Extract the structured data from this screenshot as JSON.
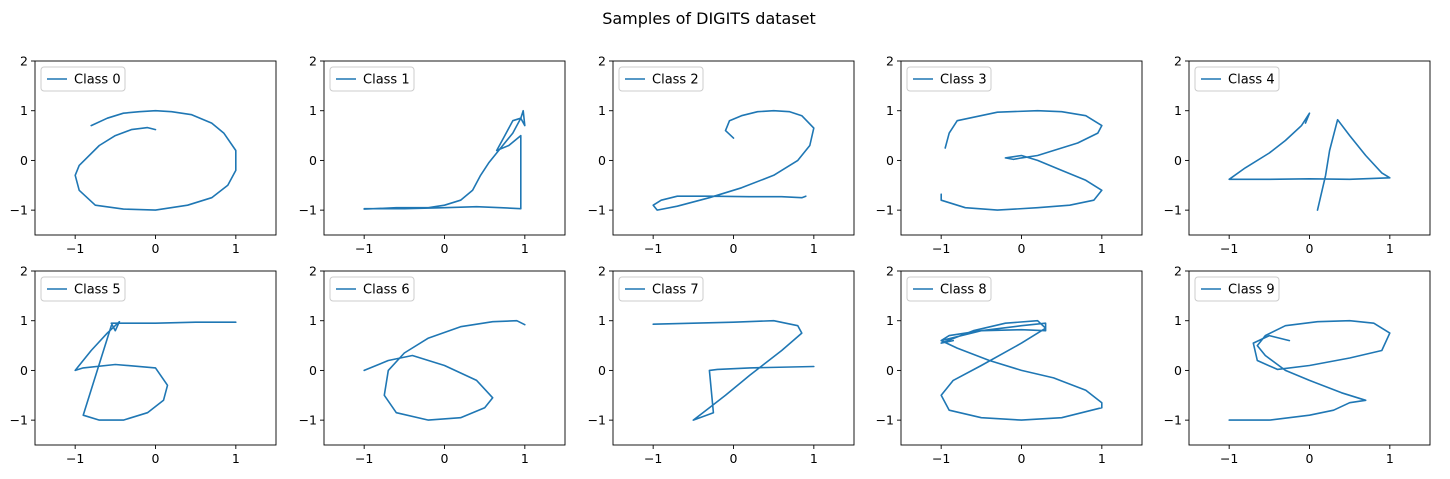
{
  "figure": {
    "title": "Samples of DIGITS dataset"
  },
  "style": {
    "line_color": "#1f77b4",
    "axes_color": "#000000",
    "legend_border": "#cccccc"
  },
  "chart_data": [
    {
      "type": "line",
      "legend": "Class 0",
      "xlim": [
        -1.5,
        1.5
      ],
      "ylim": [
        -1.5,
        2
      ],
      "xticks": [
        -1,
        0,
        1
      ],
      "yticks": [
        -1,
        0,
        1,
        2
      ],
      "grid": false,
      "legend_position": "top-left",
      "x": [
        -0.8,
        -0.6,
        -0.4,
        -0.2,
        0.0,
        0.2,
        0.45,
        0.7,
        0.85,
        1.0,
        1.0,
        0.9,
        0.7,
        0.4,
        0.0,
        -0.4,
        -0.75,
        -0.95,
        -1.0,
        -0.95,
        -0.7,
        -0.5,
        -0.3,
        -0.1,
        0.0
      ],
      "y": [
        0.7,
        0.85,
        0.95,
        0.98,
        1.0,
        0.98,
        0.92,
        0.75,
        0.55,
        0.2,
        -0.2,
        -0.5,
        -0.75,
        -0.9,
        -1.0,
        -0.98,
        -0.9,
        -0.6,
        -0.3,
        -0.1,
        0.3,
        0.5,
        0.62,
        0.66,
        0.62
      ]
    },
    {
      "type": "line",
      "legend": "Class 1",
      "xlim": [
        -1.5,
        1.5
      ],
      "ylim": [
        -1.5,
        2
      ],
      "xticks": [
        -1,
        0,
        1
      ],
      "yticks": [
        -1,
        0,
        1,
        2
      ],
      "grid": false,
      "legend_position": "top-left",
      "x": [
        -1.0,
        -0.6,
        -0.2,
        0.0,
        0.2,
        0.35,
        0.45,
        0.55,
        0.7,
        0.85,
        0.95,
        0.98,
        1.0,
        0.95,
        0.85,
        0.75,
        0.65,
        0.8,
        0.95,
        0.95,
        0.7,
        0.4,
        0.0,
        -0.5,
        -1.0
      ],
      "y": [
        -0.98,
        -0.95,
        -0.95,
        -0.9,
        -0.8,
        -0.6,
        -0.3,
        -0.05,
        0.25,
        0.55,
        0.85,
        1.0,
        0.7,
        0.85,
        0.8,
        0.5,
        0.2,
        0.3,
        0.5,
        -0.97,
        -0.95,
        -0.93,
        -0.95,
        -0.97,
        -0.97
      ]
    },
    {
      "type": "line",
      "legend": "Class 2",
      "xlim": [
        -1.5,
        1.5
      ],
      "ylim": [
        -1.5,
        2
      ],
      "xticks": [
        -1,
        0,
        1
      ],
      "yticks": [
        -1,
        0,
        1,
        2
      ],
      "grid": false,
      "legend_position": "top-left",
      "x": [
        0.0,
        -0.1,
        -0.05,
        0.1,
        0.3,
        0.5,
        0.7,
        0.85,
        1.0,
        0.95,
        0.8,
        0.5,
        0.1,
        -0.3,
        -0.7,
        -0.95,
        -1.0,
        -0.9,
        -0.7,
        -0.3,
        0.2,
        0.6,
        0.85,
        0.9
      ],
      "y": [
        0.45,
        0.6,
        0.8,
        0.9,
        0.98,
        1.0,
        0.98,
        0.9,
        0.65,
        0.3,
        0.0,
        -0.3,
        -0.55,
        -0.75,
        -0.92,
        -1.0,
        -0.9,
        -0.8,
        -0.72,
        -0.72,
        -0.73,
        -0.73,
        -0.75,
        -0.72
      ]
    },
    {
      "type": "line",
      "legend": "Class 3",
      "xlim": [
        -1.5,
        1.5
      ],
      "ylim": [
        -1.5,
        2
      ],
      "xticks": [
        -1,
        0,
        1
      ],
      "yticks": [
        -1,
        0,
        1,
        2
      ],
      "grid": false,
      "legend_position": "top-left",
      "x": [
        -0.95,
        -0.9,
        -0.8,
        -0.3,
        0.2,
        0.5,
        0.8,
        1.0,
        0.95,
        0.7,
        0.4,
        0.2,
        0.0,
        -0.1,
        -0.2,
        0.0,
        0.2,
        0.5,
        0.8,
        1.0,
        0.9,
        0.6,
        0.2,
        -0.3,
        -0.7,
        -1.0,
        -1.0
      ],
      "y": [
        0.25,
        0.55,
        0.8,
        0.97,
        1.0,
        0.98,
        0.9,
        0.7,
        0.55,
        0.35,
        0.2,
        0.1,
        0.05,
        0.02,
        0.05,
        0.1,
        0.0,
        -0.2,
        -0.4,
        -0.6,
        -0.8,
        -0.9,
        -0.95,
        -1.0,
        -0.95,
        -0.8,
        -0.68
      ]
    },
    {
      "type": "line",
      "legend": "Class 4",
      "xlim": [
        -1.5,
        1.5
      ],
      "ylim": [
        -1.5,
        2
      ],
      "xticks": [
        -1,
        0,
        1
      ],
      "yticks": [
        -1,
        0,
        1,
        2
      ],
      "grid": false,
      "legend_position": "top-left",
      "x": [
        -0.05,
        0.0,
        -0.1,
        -0.3,
        -0.5,
        -0.8,
        -1.0,
        -0.5,
        0.0,
        0.5,
        1.0,
        0.9,
        0.7,
        0.5,
        0.35,
        0.25,
        0.2,
        0.1
      ],
      "y": [
        0.75,
        0.95,
        0.7,
        0.4,
        0.15,
        -0.15,
        -0.38,
        -0.38,
        -0.37,
        -0.38,
        -0.35,
        -0.25,
        0.1,
        0.5,
        0.82,
        0.2,
        -0.3,
        -1.0
      ]
    },
    {
      "type": "line",
      "legend": "Class 5",
      "xlim": [
        -1.5,
        1.5
      ],
      "ylim": [
        -1.5,
        2
      ],
      "xticks": [
        -1,
        0,
        1
      ],
      "yticks": [
        -1,
        0,
        1,
        2
      ],
      "grid": false,
      "legend_position": "top-left",
      "x": [
        1.0,
        0.5,
        0.0,
        -0.3,
        -0.55,
        -0.5,
        -0.45,
        -0.6,
        -0.8,
        -1.0,
        -0.9,
        -0.5,
        0.0,
        0.15,
        0.1,
        -0.1,
        -0.4,
        -0.7,
        -0.9,
        -0.55
      ],
      "y": [
        0.97,
        0.97,
        0.95,
        0.95,
        0.95,
        0.8,
        0.98,
        0.75,
        0.4,
        0.0,
        0.05,
        0.12,
        0.05,
        -0.3,
        -0.6,
        -0.85,
        -1.0,
        -1.0,
        -0.9,
        0.9
      ]
    },
    {
      "type": "line",
      "legend": "Class 6",
      "xlim": [
        -1.5,
        1.5
      ],
      "ylim": [
        -1.5,
        2
      ],
      "xticks": [
        -1,
        0,
        1
      ],
      "yticks": [
        -1,
        0,
        1,
        2
      ],
      "grid": false,
      "legend_position": "top-left",
      "x": [
        1.0,
        0.9,
        0.6,
        0.2,
        -0.2,
        -0.5,
        -0.7,
        -0.75,
        -0.6,
        -0.2,
        0.2,
        0.5,
        0.6,
        0.4,
        0.0,
        -0.4,
        -0.7,
        -1.0
      ],
      "y": [
        0.92,
        1.0,
        0.98,
        0.88,
        0.65,
        0.35,
        0.0,
        -0.5,
        -0.85,
        -1.0,
        -0.95,
        -0.75,
        -0.55,
        -0.2,
        0.1,
        0.3,
        0.2,
        0.0
      ]
    },
    {
      "type": "line",
      "legend": "Class 7",
      "xlim": [
        -1.5,
        1.5
      ],
      "ylim": [
        -1.5,
        2
      ],
      "xticks": [
        -1,
        0,
        1
      ],
      "yticks": [
        -1,
        0,
        1,
        2
      ],
      "grid": false,
      "legend_position": "top-left",
      "x": [
        -1.0,
        -0.5,
        0.0,
        0.5,
        0.8,
        0.85,
        0.6,
        0.2,
        -0.1,
        -0.3,
        -0.5,
        -0.25,
        -0.3,
        -0.2,
        0.2,
        1.0
      ],
      "y": [
        0.93,
        0.95,
        0.97,
        1.0,
        0.9,
        0.75,
        0.4,
        -0.1,
        -0.5,
        -0.75,
        -1.0,
        -0.85,
        0.0,
        0.02,
        0.05,
        0.08
      ]
    },
    {
      "type": "line",
      "legend": "Class 8",
      "xlim": [
        -1.5,
        1.5
      ],
      "ylim": [
        -1.5,
        2
      ],
      "xticks": [
        -1,
        0,
        1
      ],
      "yticks": [
        -1,
        0,
        1,
        2
      ],
      "grid": false,
      "legend_position": "top-left",
      "x": [
        -0.85,
        -1.0,
        -0.6,
        -0.2,
        0.2,
        0.3,
        0.0,
        -0.5,
        -0.85,
        -1.0,
        -0.9,
        -0.5,
        0.0,
        0.5,
        1.0,
        1.0,
        0.8,
        0.4,
        0.0,
        -0.4,
        -0.8,
        -1.0,
        -0.9,
        -0.5,
        0.0,
        0.3,
        0.3,
        0.0,
        -0.5,
        -1.0
      ],
      "y": [
        0.6,
        0.55,
        0.8,
        0.95,
        1.0,
        0.85,
        0.55,
        0.1,
        -0.2,
        -0.5,
        -0.8,
        -0.95,
        -1.0,
        -0.95,
        -0.75,
        -0.65,
        -0.4,
        -0.15,
        0.0,
        0.2,
        0.45,
        0.6,
        0.7,
        0.8,
        0.82,
        0.8,
        0.95,
        0.9,
        0.8,
        0.6
      ]
    },
    {
      "type": "line",
      "legend": "Class 9",
      "xlim": [
        -1.5,
        1.5
      ],
      "ylim": [
        -1.5,
        2
      ],
      "xticks": [
        -1,
        0,
        1
      ],
      "yticks": [
        -1,
        0,
        1,
        2
      ],
      "grid": false,
      "legend_position": "top-left",
      "x": [
        -0.25,
        -0.5,
        -0.7,
        -0.65,
        -0.4,
        0.0,
        0.5,
        0.9,
        1.0,
        0.8,
        0.5,
        0.1,
        -0.3,
        -0.55,
        -0.65,
        -0.55,
        -0.3,
        0.0,
        0.4,
        0.7,
        0.5,
        0.3,
        0.0,
        -0.5,
        -1.0
      ],
      "y": [
        0.6,
        0.7,
        0.55,
        0.2,
        0.02,
        0.1,
        0.25,
        0.4,
        0.75,
        0.95,
        1.0,
        0.98,
        0.9,
        0.7,
        0.5,
        0.3,
        0.0,
        -0.2,
        -0.45,
        -0.6,
        -0.65,
        -0.8,
        -0.9,
        -1.0,
        -1.0
      ]
    }
  ]
}
